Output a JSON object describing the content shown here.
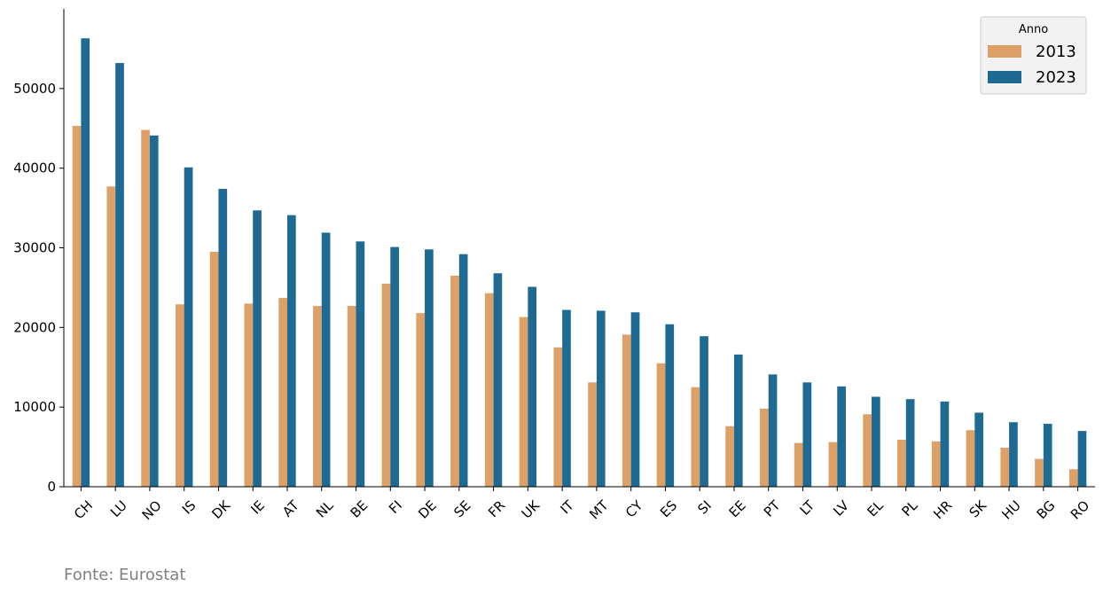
{
  "chart_data": {
    "type": "bar",
    "categories": [
      "CH",
      "LU",
      "NO",
      "IS",
      "DK",
      "IE",
      "AT",
      "NL",
      "BE",
      "FI",
      "DE",
      "SE",
      "FR",
      "UK",
      "IT",
      "MT",
      "CY",
      "ES",
      "SI",
      "EE",
      "PT",
      "LT",
      "LV",
      "EL",
      "PL",
      "HR",
      "SK",
      "HU",
      "BG",
      "RO"
    ],
    "series": [
      {
        "name": "2013",
        "color": "#DDA066",
        "values": [
          45300,
          37700,
          44800,
          22900,
          29500,
          23000,
          23700,
          22700,
          22700,
          25500,
          21800,
          26500,
          24300,
          21300,
          17500,
          13100,
          19100,
          15500,
          12500,
          7600,
          9800,
          5500,
          5600,
          9100,
          5900,
          5700,
          7100,
          4900,
          3500,
          2200
        ]
      },
      {
        "name": "2023",
        "color": "#1F6A93",
        "values": [
          56300,
          53200,
          44100,
          40100,
          37400,
          34700,
          34100,
          31900,
          30800,
          30100,
          29800,
          29200,
          26800,
          25100,
          22200,
          22100,
          21900,
          20400,
          18900,
          16600,
          14100,
          13100,
          12600,
          11300,
          11000,
          10700,
          9300,
          8100,
          7900,
          7000
        ]
      }
    ],
    "ylim": [
      0,
      60000
    ],
    "yticks": [
      0,
      10000,
      20000,
      30000,
      40000,
      50000
    ],
    "legend": {
      "title": "Anno",
      "position": "top-right"
    },
    "grid": false
  },
  "source_note": "Fonte: Eurostat"
}
